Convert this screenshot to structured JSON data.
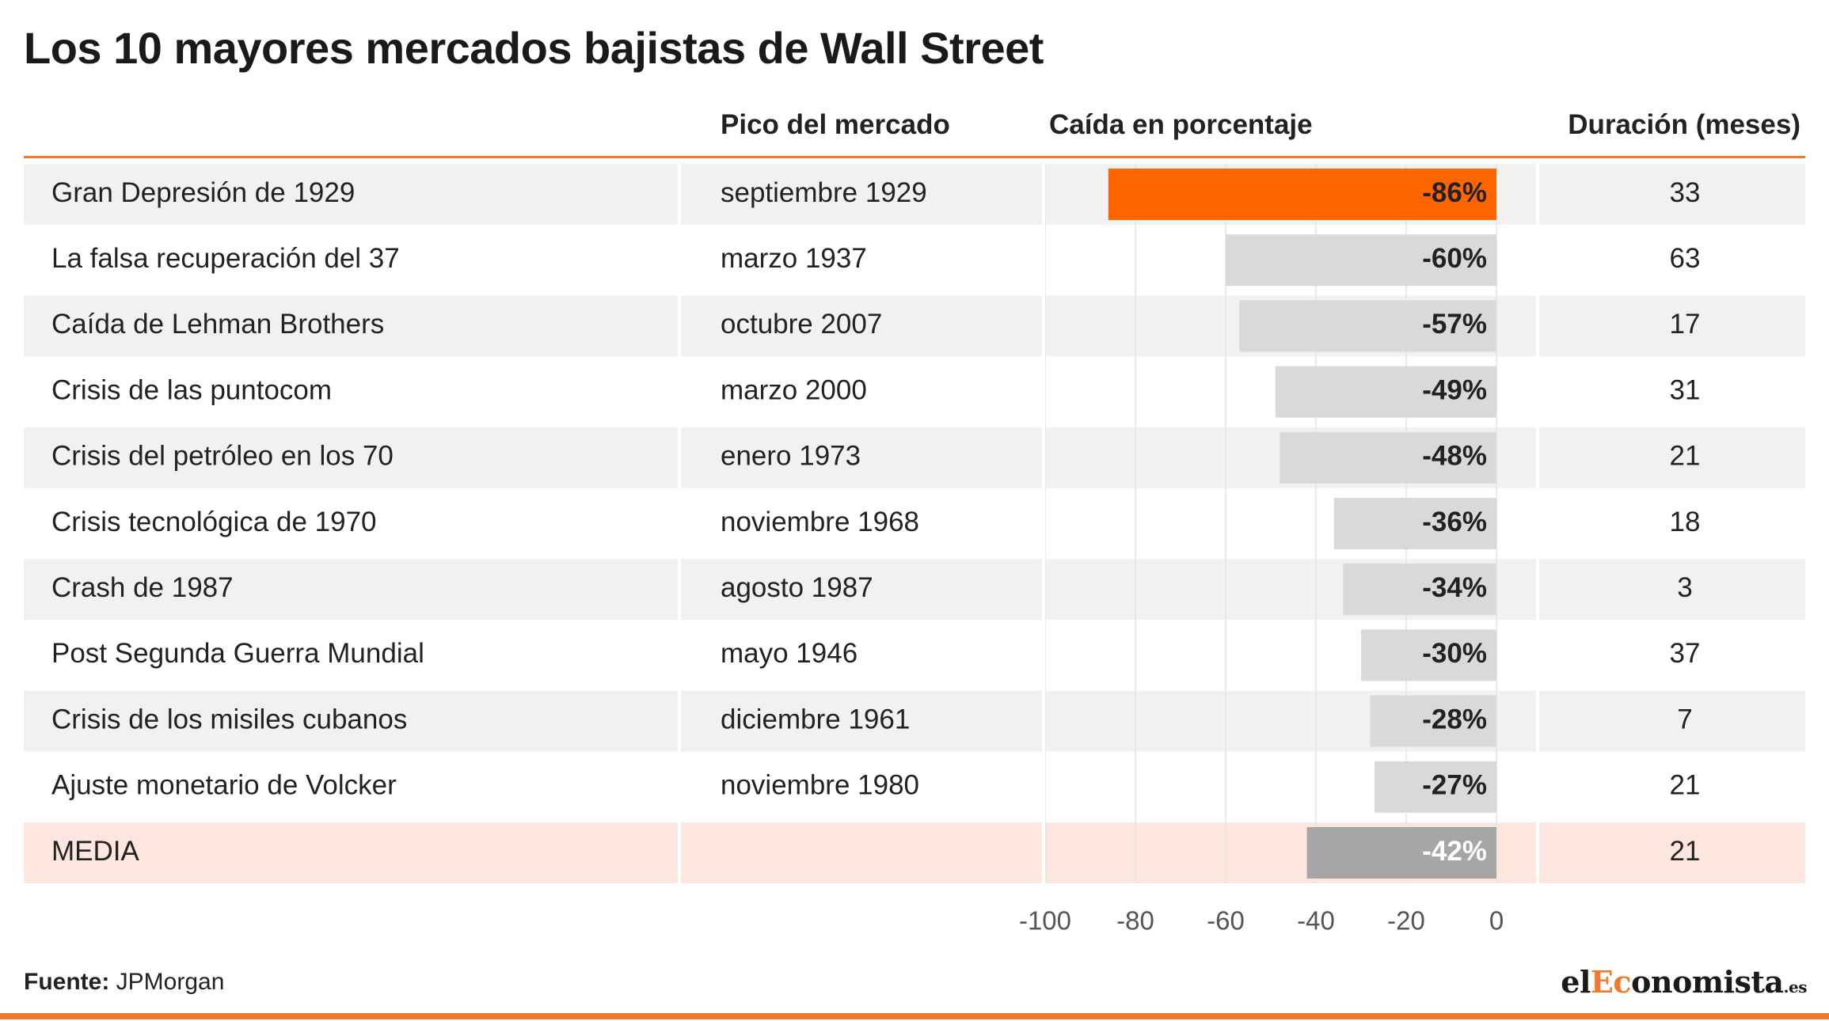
{
  "title": "Los 10 mayores mercados bajistas de Wall Street",
  "headers": {
    "name": "",
    "peak": "Pico del mercado",
    "drop": "Caída en porcentaje",
    "duration": "Duración (meses)"
  },
  "footer": {
    "source_label": "Fuente:",
    "source_value": "JPMorgan",
    "brand_pre": "el",
    "brand_accent": "Ec",
    "brand_post": "onomista",
    "brand_domain": ".es"
  },
  "colors": {
    "accent": "#ff6600",
    "bar_default": "#d9d9d9",
    "bar_average": "#a6a6a6",
    "row_alt": "#f1f1f1",
    "row_average": "#fde6dd",
    "rule": "#f07a2a"
  },
  "chart_data": {
    "type": "table",
    "title": "Los 10 mayores mercados bajistas de Wall Street",
    "columns": [
      "",
      "Pico del mercado",
      "Caída en porcentaje",
      "Duración (meses)"
    ],
    "xlim": [
      -100,
      0
    ],
    "ticks": [
      -100,
      -80,
      -60,
      -40,
      -20,
      0
    ],
    "grid": true,
    "rows": [
      {
        "name": "Gran Depresión de 1929",
        "peak": "septiembre 1929",
        "drop": -86,
        "drop_label": "-86%",
        "duration": "33",
        "highlight": "accent"
      },
      {
        "name": "La falsa recuperación del 37",
        "peak": "marzo 1937",
        "drop": -60,
        "drop_label": "-60%",
        "duration": "63"
      },
      {
        "name": "Caída de Lehman Brothers",
        "peak": "octubre 2007",
        "drop": -57,
        "drop_label": "-57%",
        "duration": "17"
      },
      {
        "name": "Crisis de las puntocom",
        "peak": "marzo 2000",
        "drop": -49,
        "drop_label": "-49%",
        "duration": "31"
      },
      {
        "name": "Crisis del petróleo en los 70",
        "peak": "enero 1973",
        "drop": -48,
        "drop_label": "-48%",
        "duration": "21"
      },
      {
        "name": "Crisis tecnológica de 1970",
        "peak": "noviembre 1968",
        "drop": -36,
        "drop_label": "-36%",
        "duration": "18"
      },
      {
        "name": "Crash de 1987",
        "peak": "agosto 1987",
        "drop": -34,
        "drop_label": "-34%",
        "duration": "3"
      },
      {
        "name": "Post Segunda Guerra Mundial",
        "peak": "mayo 1946",
        "drop": -30,
        "drop_label": "-30%",
        "duration": "37"
      },
      {
        "name": "Crisis de los misiles cubanos",
        "peak": "diciembre 1961",
        "drop": -28,
        "drop_label": "-28%",
        "duration": "7"
      },
      {
        "name": "Ajuste monetario de Volcker",
        "peak": "noviembre 1980",
        "drop": -27,
        "drop_label": "-27%",
        "duration": "21"
      },
      {
        "name": "MEDIA",
        "peak": "",
        "drop": -42,
        "drop_label": "-42%",
        "duration": "21",
        "highlight": "average"
      }
    ]
  }
}
